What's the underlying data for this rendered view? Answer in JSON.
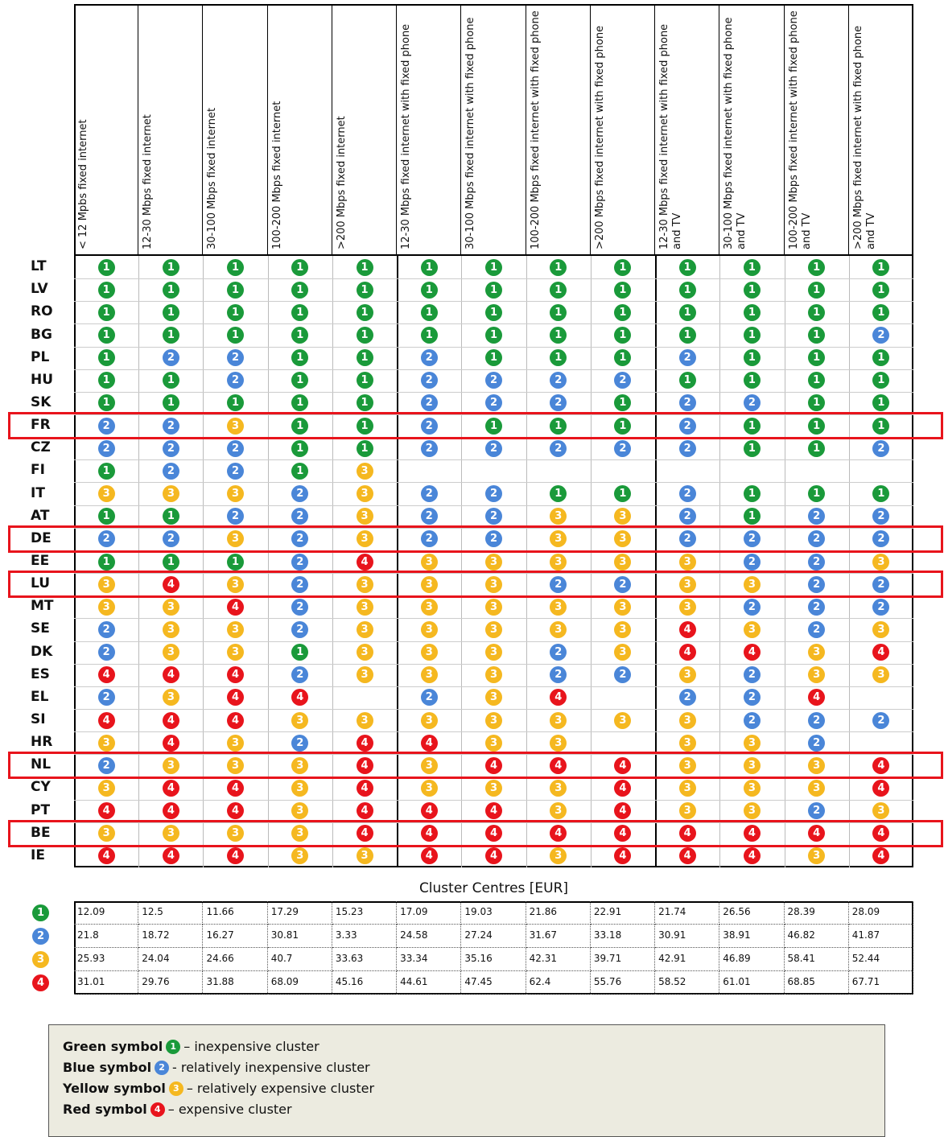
{
  "columns": [
    "< 12 Mpbs fixed internet",
    "12-30 Mbps fixed internet",
    "30-100 Mbps fixed internet",
    "100-200 Mbps fixed internet",
    ">200 Mbps fixed internet",
    "12-30 Mbps fixed internet with fixed phone",
    "30-100 Mbps fixed internet with fixed phone",
    "100-200 Mbps fixed internet with fixed phone",
    ">200 Mbps fixed internet with fixed phone",
    "12-30 Mbps fixed internet with fixed phone and TV",
    "30-100 Mbps fixed internet with fixed phone and TV",
    "100-200 Mbps fixed internet with fixed phone and TV",
    ">200 Mbps fixed internet with fixed phone and TV"
  ],
  "cluster_colors": [
    "#1a9a3a",
    "#4a86d8",
    "#f5b820",
    "#e8141c"
  ],
  "highlighted_rows": [
    7,
    12,
    14,
    22,
    25
  ],
  "rows": [
    {
      "country": "LT",
      "clusters": [
        1,
        1,
        1,
        1,
        1,
        1,
        1,
        1,
        1,
        1,
        1,
        1,
        1
      ]
    },
    {
      "country": "LV",
      "clusters": [
        1,
        1,
        1,
        1,
        1,
        1,
        1,
        1,
        1,
        1,
        1,
        1,
        1
      ]
    },
    {
      "country": "RO",
      "clusters": [
        1,
        1,
        1,
        1,
        1,
        1,
        1,
        1,
        1,
        1,
        1,
        1,
        1
      ]
    },
    {
      "country": "BG",
      "clusters": [
        1,
        1,
        1,
        1,
        1,
        1,
        1,
        1,
        1,
        1,
        1,
        1,
        2
      ]
    },
    {
      "country": "PL",
      "clusters": [
        1,
        2,
        2,
        1,
        1,
        2,
        1,
        1,
        1,
        2,
        1,
        1,
        1
      ]
    },
    {
      "country": "HU",
      "clusters": [
        1,
        1,
        2,
        1,
        1,
        2,
        2,
        2,
        2,
        1,
        1,
        1,
        1
      ]
    },
    {
      "country": "SK",
      "clusters": [
        1,
        1,
        1,
        1,
        1,
        2,
        2,
        2,
        1,
        2,
        2,
        1,
        1
      ]
    },
    {
      "country": "FR",
      "clusters": [
        2,
        2,
        3,
        1,
        1,
        2,
        1,
        1,
        1,
        2,
        1,
        1,
        1
      ]
    },
    {
      "country": "CZ",
      "clusters": [
        2,
        2,
        2,
        1,
        1,
        2,
        2,
        2,
        2,
        2,
        1,
        1,
        2
      ]
    },
    {
      "country": "FI",
      "clusters": [
        1,
        2,
        2,
        1,
        3,
        null,
        null,
        null,
        null,
        null,
        null,
        null,
        null
      ]
    },
    {
      "country": "IT",
      "clusters": [
        3,
        3,
        3,
        2,
        3,
        2,
        2,
        1,
        1,
        2,
        1,
        1,
        1
      ]
    },
    {
      "country": "AT",
      "clusters": [
        1,
        1,
        2,
        2,
        3,
        2,
        2,
        3,
        3,
        2,
        1,
        2,
        2
      ]
    },
    {
      "country": "DE",
      "clusters": [
        2,
        2,
        3,
        2,
        3,
        2,
        2,
        3,
        3,
        2,
        2,
        2,
        2
      ]
    },
    {
      "country": "EE",
      "clusters": [
        1,
        1,
        1,
        2,
        4,
        3,
        3,
        3,
        3,
        3,
        2,
        2,
        3
      ]
    },
    {
      "country": "LU",
      "clusters": [
        3,
        4,
        3,
        2,
        3,
        3,
        3,
        2,
        2,
        3,
        3,
        2,
        2
      ]
    },
    {
      "country": "MT",
      "clusters": [
        3,
        3,
        4,
        2,
        3,
        3,
        3,
        3,
        3,
        3,
        2,
        2,
        2
      ]
    },
    {
      "country": "SE",
      "clusters": [
        2,
        3,
        3,
        2,
        3,
        3,
        3,
        3,
        3,
        4,
        3,
        2,
        3
      ]
    },
    {
      "country": "DK",
      "clusters": [
        2,
        3,
        3,
        1,
        3,
        3,
        3,
        2,
        3,
        4,
        4,
        3,
        4
      ]
    },
    {
      "country": "ES",
      "clusters": [
        4,
        4,
        4,
        2,
        3,
        3,
        3,
        2,
        2,
        3,
        2,
        3,
        3
      ]
    },
    {
      "country": "EL",
      "clusters": [
        2,
        3,
        4,
        4,
        null,
        2,
        3,
        4,
        null,
        2,
        2,
        4,
        null
      ]
    },
    {
      "country": "SI",
      "clusters": [
        4,
        4,
        4,
        3,
        3,
        3,
        3,
        3,
        3,
        3,
        2,
        2,
        2
      ]
    },
    {
      "country": "HR",
      "clusters": [
        3,
        4,
        3,
        2,
        4,
        4,
        3,
        3,
        null,
        3,
        3,
        2,
        null
      ]
    },
    {
      "country": "NL",
      "clusters": [
        2,
        3,
        3,
        3,
        4,
        3,
        4,
        4,
        4,
        3,
        3,
        3,
        4
      ]
    },
    {
      "country": "CY",
      "clusters": [
        3,
        4,
        4,
        3,
        4,
        3,
        3,
        3,
        4,
        3,
        3,
        3,
        4
      ]
    },
    {
      "country": "PT",
      "clusters": [
        4,
        4,
        4,
        3,
        4,
        4,
        4,
        3,
        4,
        3,
        3,
        2,
        3
      ]
    },
    {
      "country": "BE",
      "clusters": [
        3,
        3,
        3,
        3,
        4,
        4,
        4,
        4,
        4,
        4,
        4,
        4,
        4
      ]
    },
    {
      "country": "IE",
      "clusters": [
        4,
        4,
        4,
        3,
        3,
        4,
        4,
        3,
        4,
        4,
        4,
        3,
        4
      ]
    }
  ],
  "cluster_centres": {
    "title": "Cluster Centres [EUR]",
    "rows": [
      {
        "cluster": 1,
        "values": [
          "12.09",
          "12.5",
          "11.66",
          "17.29",
          "15.23",
          "17.09",
          "19.03",
          "21.86",
          "22.91",
          "21.74",
          "26.56",
          "28.39",
          "28.09"
        ]
      },
      {
        "cluster": 2,
        "values": [
          "21.8",
          "18.72",
          "16.27",
          "30.81",
          "3.33",
          "24.58",
          "27.24",
          "31.67",
          "33.18",
          "30.91",
          "38.91",
          "46.82",
          "41.87"
        ]
      },
      {
        "cluster": 3,
        "values": [
          "25.93",
          "24.04",
          "24.66",
          "40.7",
          "33.63",
          "33.34",
          "35.16",
          "42.31",
          "39.71",
          "42.91",
          "46.89",
          "58.41",
          "52.44"
        ]
      },
      {
        "cluster": 4,
        "values": [
          "31.01",
          "29.76",
          "31.88",
          "68.09",
          "45.16",
          "44.61",
          "47.45",
          "62.4",
          "55.76",
          "58.52",
          "61.01",
          "68.85",
          "67.71"
        ]
      }
    ]
  },
  "legend": [
    {
      "symbol": "Green symbol",
      "cluster": 1,
      "text": "– inexpensive cluster"
    },
    {
      "symbol": "Blue symbol",
      "cluster": 2,
      "text": "- relatively inexpensive cluster"
    },
    {
      "symbol": "Yellow symbol",
      "cluster": 3,
      "text": "– relatively expensive cluster"
    },
    {
      "symbol": "Red symbol",
      "cluster": 4,
      "text": "– expensive cluster"
    }
  ]
}
